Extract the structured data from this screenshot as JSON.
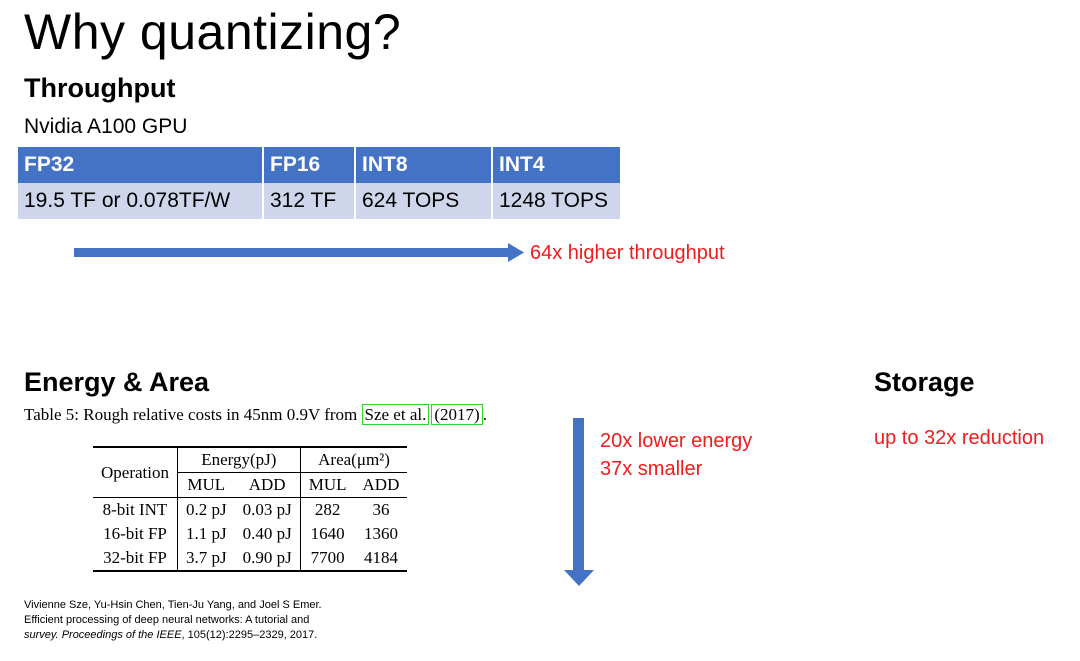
{
  "title": "Why quantizing?",
  "throughput": {
    "heading": "Throughput",
    "subheading": "Nvidia A100 GPU",
    "headers": [
      "FP32",
      "FP16",
      "INT8",
      "INT4"
    ],
    "values": [
      "19.5 TF or 0.078TF/W",
      "312 TF",
      "624 TOPS",
      "1248 TOPS"
    ],
    "arrow_label": "64x higher throughput"
  },
  "energy": {
    "heading": "Energy & Area",
    "caption_prefix": "Table 5: Rough relative costs in 45nm 0.9V from ",
    "caption_cite": "Sze et al.",
    "caption_year": "(2017)",
    "caption_suffix": ".",
    "col_operation": "Operation",
    "col_energy": "Energy(pJ)",
    "col_area": "Area(μm²)",
    "sub_mul": "MUL",
    "sub_add": "ADD",
    "rows": [
      [
        "8-bit INT",
        "0.2 pJ",
        "0.03 pJ",
        "282",
        "36"
      ],
      [
        "16-bit FP",
        "1.1 pJ",
        "0.40 pJ",
        "1640",
        "1360"
      ],
      [
        "32-bit FP",
        "3.7 pJ",
        "0.90 pJ",
        "7700",
        "4184"
      ]
    ],
    "label_line1": "20x lower energy",
    "label_line2": "37x smaller"
  },
  "storage": {
    "heading": "Storage",
    "label": "up to 32x reduction"
  },
  "reference": {
    "line1": "Vivienne Sze, Yu-Hsin Chen, Tien-Ju Yang, and Joel S Emer.",
    "line2": "Efficient processing of deep neural networks: A tutorial and",
    "line3_italic": "survey. Proceedings of the IEEE",
    "line3_rest": ", 105(12):2295–2329, 2017."
  },
  "colors": {
    "accent": "#4472c4",
    "table_fill": "#cfd5ea",
    "highlight": "#ee1c1c"
  }
}
